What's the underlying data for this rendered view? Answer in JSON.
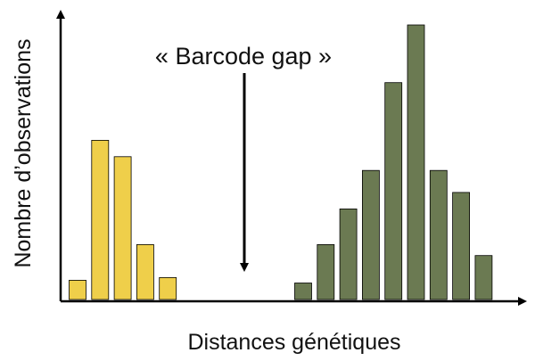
{
  "chart_data": {
    "type": "bar",
    "xlabel": "Distances génétiques",
    "ylabel": "Nombre d’observations",
    "annotation": "« Barcode gap »",
    "x_tick_labels": false,
    "y_tick_labels": false,
    "grid": false,
    "ylim": [
      0,
      100
    ],
    "series": [
      {
        "color": "#efcf4a",
        "x": [
          1,
          2,
          3,
          4,
          5
        ],
        "values": [
          7,
          58,
          52,
          20,
          8
        ]
      },
      {
        "color": "#6b7a52",
        "x": [
          11,
          12,
          13,
          14,
          15,
          16,
          17,
          18,
          19
        ],
        "values": [
          6,
          20,
          33,
          47,
          79,
          100,
          47,
          39,
          16
        ]
      }
    ]
  }
}
